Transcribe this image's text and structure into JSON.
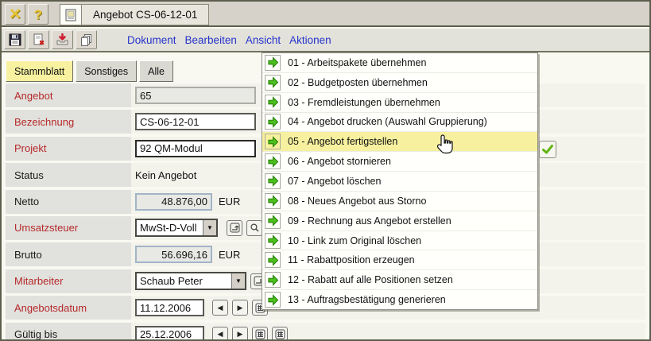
{
  "titlebar": {
    "title": "Angebot CS-06-12-01",
    "help_glyph": "?",
    "close_glyph": "✕"
  },
  "menubar": {
    "items": [
      "Dokument",
      "Bearbeiten",
      "Ansicht",
      "Aktionen"
    ]
  },
  "tabs": {
    "items": [
      {
        "label": "Stammblatt",
        "active": true
      },
      {
        "label": "Sonstiges",
        "active": false
      },
      {
        "label": "Alle",
        "active": false
      }
    ]
  },
  "fields": {
    "angebot": {
      "label": "Angebot",
      "value": "65"
    },
    "bezeichnung": {
      "label": "Bezeichnung",
      "value": "CS-06-12-01"
    },
    "projekt": {
      "label": "Projekt",
      "value": "92 QM-Modul"
    },
    "status": {
      "label": "Status",
      "value": "Kein Angebot"
    },
    "netto": {
      "label": "Netto",
      "value": "48.876,00",
      "currency": "EUR"
    },
    "umsatzsteuer": {
      "label": "Umsatzsteuer",
      "value": "MwSt-D-Voll"
    },
    "brutto": {
      "label": "Brutto",
      "value": "56.696,16",
      "currency": "EUR"
    },
    "mitarbeiter": {
      "label": "Mitarbeiter",
      "value": "Schaub Peter"
    },
    "angebotsdatum": {
      "label": "Angebotsdatum",
      "value": "11.12.2006"
    },
    "gueltig_bis": {
      "label": "Gültig bis",
      "value": "25.12.2006"
    }
  },
  "aktionen_menu": {
    "highlighted_index": 4,
    "items": [
      "01 - Arbeitspakete übernehmen",
      "02 - Budgetposten übernehmen",
      "03 - Fremdleistungen übernehmen",
      "04 - Angebot drucken (Auswahl Gruppierung)",
      "05 - Angebot fertigstellen",
      "06 - Angebot stornieren",
      "07 - Angebot löschen",
      "08 - Neues Angebot aus Storno",
      "09 - Rechnung aus Angebot erstellen",
      "10 - Link zum Original löschen",
      "11 - Rabattposition erzeugen",
      "12 - Rabatt auf alle Positionen setzen",
      "13 - Auftragsbestätigung generieren"
    ]
  },
  "colors": {
    "highlight_yellow": "#f7f19f",
    "menu_arrow_green": "#4cbf1e",
    "required_label_red": "#b52a2a",
    "menubar_blue": "#2633cc",
    "window_border": "#5e5e4e"
  }
}
